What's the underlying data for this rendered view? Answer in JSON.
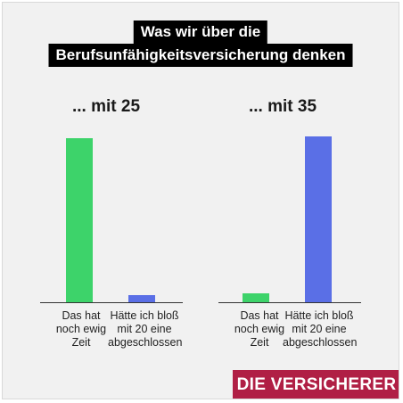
{
  "title_lines": [
    "Was wir über die",
    "Berufsunfähigkeitsversicherung denken"
  ],
  "brand": "DIE VERSICHERER",
  "colors": {
    "series_a": "#3dd36a",
    "series_b": "#5a6fe6",
    "brand": "#b01f45"
  },
  "chart_data": [
    {
      "type": "bar",
      "title": "... mit 25",
      "categories": [
        "Das hat noch ewig Zeit",
        "Hätte ich bloß mit 20 eine abgeschlossen"
      ],
      "category_lines": [
        [
          "Das hat",
          "noch ewig",
          "Zeit"
        ],
        [
          "Hätte ich bloß",
          "mit 20 eine",
          "abgeschlossen"
        ]
      ],
      "values": [
        95,
        4
      ],
      "colors": [
        "#3dd36a",
        "#5a6fe6"
      ],
      "ylim": [
        0,
        100
      ],
      "grid": false,
      "xlabel": "",
      "ylabel": ""
    },
    {
      "type": "bar",
      "title": "... mit 35",
      "categories": [
        "Das hat noch ewig Zeit",
        "Hätte ich bloß mit 20 eine abgeschlossen"
      ],
      "category_lines": [
        [
          "Das hat",
          "noch ewig",
          "Zeit"
        ],
        [
          "Hätte ich bloß",
          "mit 20 eine",
          "abgeschlossen"
        ]
      ],
      "values": [
        5,
        96
      ],
      "colors": [
        "#3dd36a",
        "#5a6fe6"
      ],
      "ylim": [
        0,
        100
      ],
      "grid": false,
      "xlabel": "",
      "ylabel": ""
    }
  ]
}
